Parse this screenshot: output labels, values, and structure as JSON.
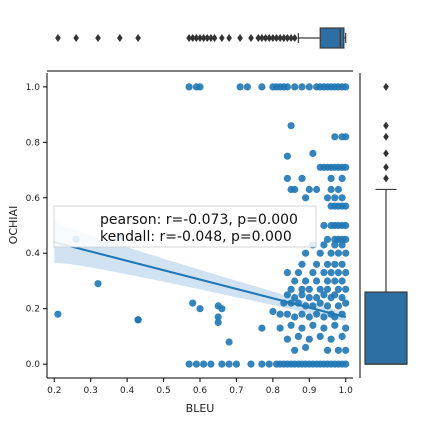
{
  "chart_data": {
    "type": "scatter",
    "variant": "jointplot with regression line, 95% confidence band and marginal box plots",
    "xlabel": "BLEU",
    "ylabel": "OCHIAI",
    "xlim": [
      0.18,
      1.02
    ],
    "ylim": [
      -0.05,
      1.05
    ],
    "x_ticks": [
      "0.2",
      "0.3",
      "0.4",
      "0.5",
      "0.6",
      "0.7",
      "0.8",
      "0.9",
      "1.0"
    ],
    "y_ticks": [
      "0.0",
      "0.2",
      "0.4",
      "0.6",
      "0.8",
      "1.0"
    ],
    "grid": false,
    "colors": {
      "points": "#1f77b4",
      "regression_line": "#1f77b4",
      "confidence_band": "#c6dbef",
      "box_fill": "#2e6fa3",
      "axes": "#000000"
    },
    "annotation": {
      "line1": "pearson: r=-0.073, p=0.000",
      "line2": "kendall: r=-0.048, p=0.000",
      "placement": "center-left, over the plot"
    },
    "regression": {
      "x": [
        0.2,
        1.0
      ],
      "y": [
        0.44,
        0.17
      ],
      "band_width_x_start": 0.15,
      "band_width_x_end": 0.03
    },
    "points": [
      [
        0.21,
        0.18
      ],
      [
        0.26,
        0.45
      ],
      [
        0.32,
        0.29
      ],
      [
        0.38,
        0.46
      ],
      [
        0.43,
        0.16
      ],
      [
        0.43,
        0.16
      ],
      [
        0.57,
        1.0
      ],
      [
        0.59,
        1.0
      ],
      [
        0.6,
        1.0
      ],
      [
        0.71,
        1.0
      ],
      [
        0.73,
        1.0
      ],
      [
        0.77,
        1.0
      ],
      [
        0.8,
        1.0
      ],
      [
        0.81,
        1.0
      ],
      [
        0.82,
        1.0
      ],
      [
        0.83,
        1.0
      ],
      [
        0.84,
        1.0
      ],
      [
        0.86,
        1.0
      ],
      [
        0.88,
        1.0
      ],
      [
        0.9,
        1.0
      ],
      [
        0.92,
        1.0
      ],
      [
        0.93,
        1.0
      ],
      [
        0.94,
        1.0
      ],
      [
        0.95,
        1.0
      ],
      [
        0.96,
        1.0
      ],
      [
        0.97,
        1.0
      ],
      [
        0.98,
        1.0
      ],
      [
        0.99,
        1.0
      ],
      [
        1.0,
        1.0
      ],
      [
        0.85,
        0.86
      ],
      [
        0.97,
        0.82
      ],
      [
        0.99,
        0.82
      ],
      [
        1.0,
        0.82
      ],
      [
        0.84,
        0.75
      ],
      [
        0.91,
        0.76
      ],
      [
        0.93,
        0.71
      ],
      [
        0.94,
        0.71
      ],
      [
        0.95,
        0.71
      ],
      [
        0.96,
        0.71
      ],
      [
        0.97,
        0.71
      ],
      [
        0.98,
        0.71
      ],
      [
        0.99,
        0.71
      ],
      [
        1.0,
        0.71
      ],
      [
        0.84,
        0.67
      ],
      [
        0.88,
        0.67
      ],
      [
        0.96,
        0.67
      ],
      [
        0.99,
        0.67
      ],
      [
        0.85,
        0.63
      ],
      [
        0.86,
        0.63
      ],
      [
        0.9,
        0.63
      ],
      [
        0.92,
        0.63
      ],
      [
        0.96,
        0.63
      ],
      [
        0.98,
        0.63
      ],
      [
        0.89,
        0.6
      ],
      [
        0.95,
        0.6
      ],
      [
        0.97,
        0.6
      ],
      [
        0.99,
        0.6
      ],
      [
        0.96,
        0.57
      ],
      [
        0.97,
        0.57
      ],
      [
        0.98,
        0.57
      ],
      [
        0.99,
        0.57
      ],
      [
        1.0,
        0.57
      ],
      [
        0.94,
        0.5
      ],
      [
        0.96,
        0.5
      ],
      [
        0.97,
        0.5
      ],
      [
        0.98,
        0.5
      ],
      [
        0.99,
        0.5
      ],
      [
        1.0,
        0.5
      ],
      [
        0.95,
        0.45
      ],
      [
        0.97,
        0.45
      ],
      [
        0.98,
        0.45
      ],
      [
        0.99,
        0.45
      ],
      [
        1.0,
        0.45
      ],
      [
        0.91,
        0.43
      ],
      [
        0.94,
        0.43
      ],
      [
        0.97,
        0.43
      ],
      [
        0.99,
        0.43
      ],
      [
        0.89,
        0.4
      ],
      [
        0.93,
        0.4
      ],
      [
        0.96,
        0.4
      ],
      [
        0.98,
        0.4
      ],
      [
        1.0,
        0.4
      ],
      [
        0.88,
        0.36
      ],
      [
        0.92,
        0.36
      ],
      [
        0.95,
        0.36
      ],
      [
        0.97,
        0.36
      ],
      [
        0.99,
        0.36
      ],
      [
        0.84,
        0.33
      ],
      [
        0.87,
        0.33
      ],
      [
        0.91,
        0.33
      ],
      [
        0.94,
        0.33
      ],
      [
        0.96,
        0.33
      ],
      [
        0.98,
        0.33
      ],
      [
        1.0,
        0.33
      ],
      [
        0.86,
        0.3
      ],
      [
        0.89,
        0.3
      ],
      [
        0.92,
        0.3
      ],
      [
        0.95,
        0.3
      ],
      [
        0.97,
        0.3
      ],
      [
        0.99,
        0.3
      ],
      [
        0.85,
        0.27
      ],
      [
        0.88,
        0.27
      ],
      [
        0.9,
        0.27
      ],
      [
        0.93,
        0.27
      ],
      [
        0.95,
        0.27
      ],
      [
        0.98,
        0.27
      ],
      [
        1.0,
        0.27
      ],
      [
        0.84,
        0.25
      ],
      [
        0.86,
        0.24
      ],
      [
        0.88,
        0.25
      ],
      [
        0.9,
        0.24
      ],
      [
        0.92,
        0.24
      ],
      [
        0.94,
        0.25
      ],
      [
        0.96,
        0.24
      ],
      [
        0.97,
        0.25
      ],
      [
        0.99,
        0.24
      ],
      [
        0.83,
        0.22
      ],
      [
        0.85,
        0.22
      ],
      [
        0.87,
        0.22
      ],
      [
        0.89,
        0.21
      ],
      [
        0.91,
        0.21
      ],
      [
        0.93,
        0.22
      ],
      [
        0.95,
        0.21
      ],
      [
        0.98,
        0.21
      ],
      [
        1.0,
        0.22
      ],
      [
        0.58,
        0.22
      ],
      [
        0.6,
        0.2
      ],
      [
        0.65,
        0.21
      ],
      [
        0.66,
        0.2
      ],
      [
        0.8,
        0.19
      ],
      [
        0.82,
        0.18
      ],
      [
        0.84,
        0.18
      ],
      [
        0.86,
        0.17
      ],
      [
        0.88,
        0.18
      ],
      [
        0.9,
        0.17
      ],
      [
        0.92,
        0.18
      ],
      [
        0.94,
        0.17
      ],
      [
        0.96,
        0.18
      ],
      [
        0.97,
        0.17
      ],
      [
        0.99,
        0.18
      ],
      [
        0.65,
        0.17
      ],
      [
        0.65,
        0.15
      ],
      [
        0.77,
        0.13
      ],
      [
        0.82,
        0.13
      ],
      [
        0.85,
        0.14
      ],
      [
        0.88,
        0.13
      ],
      [
        0.91,
        0.14
      ],
      [
        0.94,
        0.13
      ],
      [
        0.97,
        0.14
      ],
      [
        1.0,
        0.13
      ],
      [
        0.68,
        0.08
      ],
      [
        0.84,
        0.09
      ],
      [
        0.87,
        0.1
      ],
      [
        0.9,
        0.09
      ],
      [
        0.93,
        0.1
      ],
      [
        0.96,
        0.09
      ],
      [
        0.99,
        0.1
      ],
      [
        0.86,
        0.05
      ],
      [
        0.89,
        0.06
      ],
      [
        0.95,
        0.05
      ],
      [
        0.98,
        0.05
      ],
      [
        1.0,
        0.05
      ],
      [
        0.57,
        0.0
      ],
      [
        0.59,
        0.0
      ],
      [
        0.61,
        0.0
      ],
      [
        0.63,
        0.0
      ],
      [
        0.66,
        0.0
      ],
      [
        0.68,
        0.0
      ],
      [
        0.7,
        0.0
      ],
      [
        0.74,
        0.0
      ],
      [
        0.77,
        0.0
      ],
      [
        0.79,
        0.0
      ],
      [
        0.81,
        0.0
      ],
      [
        0.82,
        0.0
      ],
      [
        0.83,
        0.0
      ],
      [
        0.84,
        0.0
      ],
      [
        0.85,
        0.0
      ],
      [
        0.86,
        0.0
      ],
      [
        0.87,
        0.0
      ],
      [
        0.88,
        0.0
      ],
      [
        0.89,
        0.0
      ],
      [
        0.9,
        0.0
      ],
      [
        0.91,
        0.0
      ],
      [
        0.92,
        0.0
      ],
      [
        0.93,
        0.0
      ],
      [
        0.94,
        0.0
      ],
      [
        0.95,
        0.0
      ],
      [
        0.96,
        0.0
      ],
      [
        0.97,
        0.0
      ],
      [
        0.98,
        0.0
      ],
      [
        0.99,
        0.0
      ],
      [
        1.0,
        0.0
      ]
    ],
    "marginal_x_box": {
      "whisker_low": 0.87,
      "q1": 0.93,
      "median": 0.985,
      "q3": 0.995,
      "whisker_high": 1.0,
      "outliers": [
        0.21,
        0.26,
        0.32,
        0.38,
        0.43,
        0.57,
        0.58,
        0.59,
        0.6,
        0.61,
        0.62,
        0.63,
        0.64,
        0.66,
        0.68,
        0.71,
        0.74,
        0.76,
        0.77,
        0.78,
        0.79,
        0.8,
        0.81,
        0.82,
        0.83,
        0.84,
        0.85,
        0.86
      ]
    },
    "marginal_y_box": {
      "whisker_low": 0.0,
      "q1": 0.0,
      "median": 0.0,
      "q3": 0.26,
      "whisker_high": 0.63,
      "outliers": [
        0.67,
        0.71,
        0.76,
        0.82,
        0.86,
        1.0
      ]
    }
  }
}
